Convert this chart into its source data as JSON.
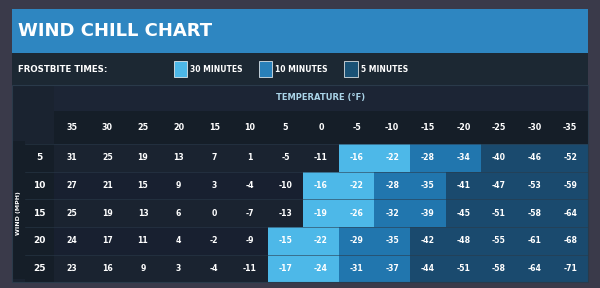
{
  "title": "WIND CHILL CHART",
  "subtitle_label": "FROSTBITE TIMES:",
  "legend_items": [
    {
      "label": "30 MINUTES",
      "color": "#4db8e8"
    },
    {
      "label": "10 MINUTES",
      "color": "#2980b9"
    },
    {
      "label": "5 MINUTES",
      "color": "#1a5276"
    }
  ],
  "temp_label": "TEMPERATURE (°F)",
  "wind_label": "WIND (MPH)",
  "col_headers": [
    35,
    30,
    25,
    20,
    15,
    10,
    5,
    0,
    -5,
    -10,
    -15,
    -20,
    -25,
    -30,
    -35
  ],
  "row_headers": [
    5,
    10,
    15,
    20,
    25
  ],
  "table_data": [
    [
      31,
      25,
      19,
      13,
      7,
      1,
      -5,
      -11,
      -16,
      -22,
      -28,
      -34,
      -40,
      -46,
      -52
    ],
    [
      27,
      21,
      15,
      9,
      3,
      -4,
      -10,
      -16,
      -22,
      -28,
      -35,
      -41,
      -47,
      -53,
      -59
    ],
    [
      25,
      19,
      13,
      6,
      0,
      -7,
      -13,
      -19,
      -26,
      -32,
      -39,
      -45,
      -51,
      -58,
      -64
    ],
    [
      24,
      17,
      11,
      4,
      -2,
      -9,
      -15,
      -22,
      -29,
      -35,
      -42,
      -48,
      -55,
      -61,
      -68
    ],
    [
      23,
      16,
      9,
      3,
      -4,
      -11,
      -17,
      -24,
      -31,
      -37,
      -44,
      -51,
      -58,
      -64,
      -71
    ]
  ],
  "bg_color": "#1a1a2e",
  "title_bg": "#2e86c1",
  "subtitle_bg": "#1c2833",
  "table_bg": "#1e2a38",
  "header_bg": "#1c2833",
  "text_color": "#ffffff",
  "header_text_color": "#ffffff",
  "zone_30min_color": "#4db8e8",
  "zone_10min_color": "#2176ae",
  "zone_5min_color": "#1a4a6e"
}
